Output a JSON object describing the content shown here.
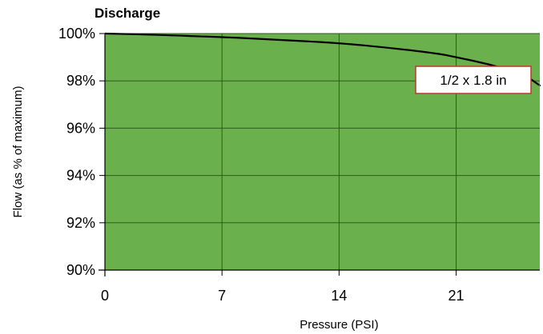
{
  "chart_data": {
    "type": "line",
    "title": "Discharge",
    "xlabel": "Pressure (PSI)",
    "ylabel": "Flow (as % of maximum)",
    "x_ticks": [
      0,
      7,
      14,
      21
    ],
    "y_ticks": [
      90,
      92,
      94,
      96,
      98,
      100
    ],
    "x_tick_labels": [
      "0",
      "7",
      "14",
      "21"
    ],
    "y_tick_labels": [
      "90%",
      "92%",
      "94%",
      "96%",
      "98%",
      "100%"
    ],
    "xlim": [
      0,
      26
    ],
    "ylim": [
      90,
      100
    ],
    "grid": true,
    "series": [
      {
        "name": "1/2 x 1.8 in",
        "x": [
          0,
          3,
          7,
          10,
          14,
          17,
          20,
          21,
          23,
          25,
          26
        ],
        "y": [
          100,
          99.95,
          99.85,
          99.75,
          99.6,
          99.4,
          99.15,
          99.0,
          98.7,
          98.3,
          97.8
        ]
      }
    ],
    "annotation": "1/2 x 1.8 in",
    "colors": {
      "plot_background": "#6ab04c",
      "grid": "#2f5a1e",
      "line": "#000000",
      "callout_border": "#c0392b"
    }
  }
}
